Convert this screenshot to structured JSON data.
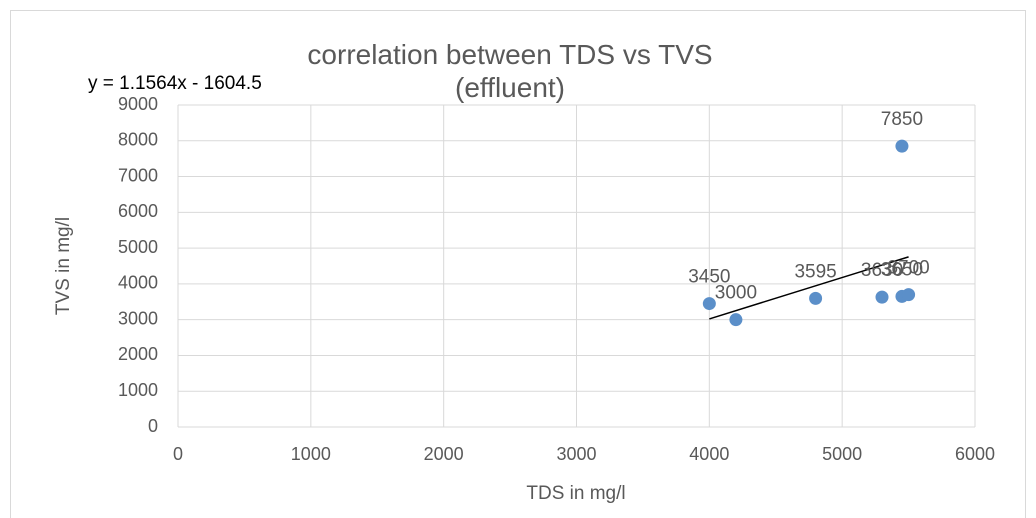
{
  "chart_data": {
    "type": "scatter",
    "title": "correlation between TDS vs TVS (effluent)",
    "x_label": "TDS in mg/l",
    "y_label": "TVS in mg/l",
    "series": [
      {
        "name": "TVS",
        "color": "#5b8fc9",
        "x": [
          4000,
          4200,
          4800,
          5300,
          5450,
          5500,
          5450
        ],
        "values": [
          3450,
          3000,
          3595,
          3630,
          3650,
          3700,
          7850
        ]
      }
    ],
    "trendline": {
      "label": "y = 1.1564x - 1604.5",
      "slope": 1.1564,
      "intercept": -1604.5
    },
    "xlim": [
      0,
      6000
    ],
    "xticks": [
      0,
      1000,
      2000,
      3000,
      4000,
      5000,
      6000
    ],
    "ylim": [
      0,
      9000
    ],
    "yticks": [
      0,
      1000,
      2000,
      3000,
      4000,
      5000,
      6000,
      7000,
      8000,
      9000
    ],
    "grid": true
  }
}
